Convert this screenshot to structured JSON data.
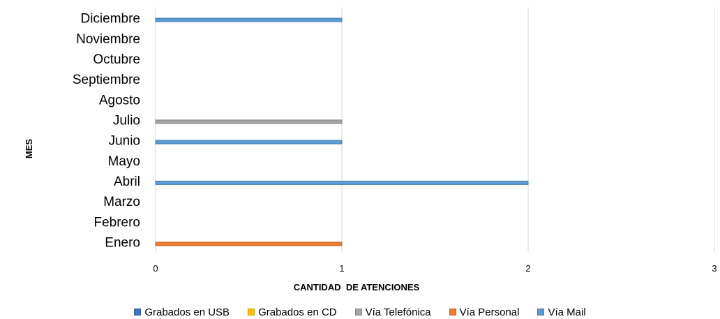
{
  "chart_data": {
    "type": "bar",
    "orientation": "horizontal",
    "categories": [
      "Enero",
      "Febrero",
      "Marzo",
      "Abril",
      "Mayo",
      "Junio",
      "Julio",
      "Agosto",
      "Septiembre",
      "Octubre",
      "Noviembre",
      "Diciembre"
    ],
    "series": [
      {
        "name": "Grabados en USB",
        "color": "#4472c4",
        "values": [
          0,
          0,
          0,
          0,
          0,
          0,
          0,
          0,
          0,
          0,
          0,
          0
        ]
      },
      {
        "name": "Grabados en CD",
        "color": "#ffc000",
        "values": [
          0,
          0,
          0,
          0,
          0,
          0,
          0,
          0,
          0,
          0,
          0,
          0
        ]
      },
      {
        "name": "Vía Telefónica",
        "color": "#a5a5a5",
        "values": [
          0,
          0,
          0,
          0,
          0,
          0,
          1,
          0,
          0,
          0,
          0,
          0
        ]
      },
      {
        "name": "Vía Personal",
        "color": "#ed7d31",
        "values": [
          1,
          0,
          0,
          0,
          0,
          0,
          0,
          0,
          0,
          0,
          0,
          0
        ]
      },
      {
        "name": "Vía Mail",
        "color": "#5b9bd5",
        "values": [
          0,
          0,
          0,
          2,
          0,
          1,
          0,
          0,
          0,
          0,
          0,
          1
        ]
      }
    ],
    "xlabel": "CANTIDAD  DE ATENCIONES",
    "ylabel": "MES",
    "xlim": [
      0,
      3
    ],
    "xticks": [
      "0",
      "1",
      "2",
      "3"
    ],
    "grid": "vertical",
    "legend": "bottom"
  }
}
